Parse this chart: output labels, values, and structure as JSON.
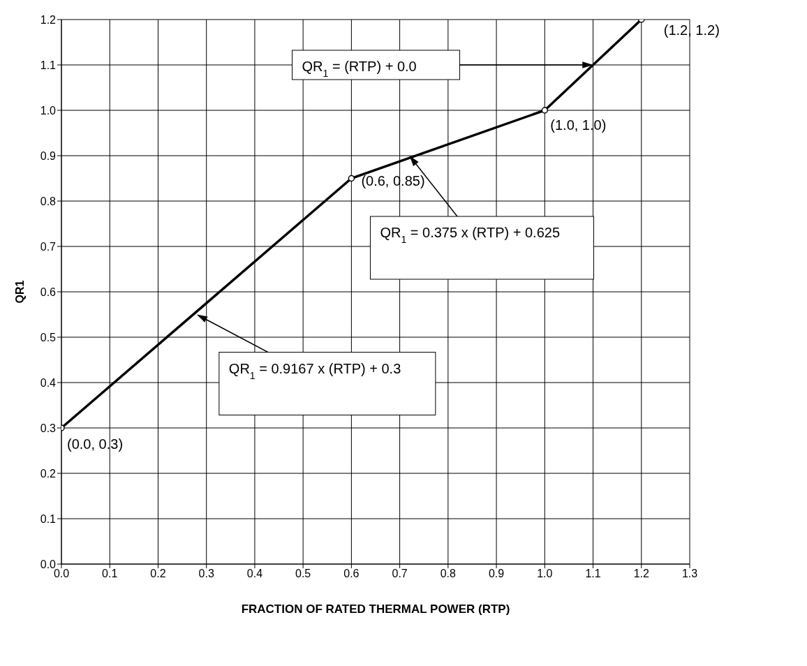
{
  "chart_data": {
    "type": "line",
    "xlabel": "FRACTION OF RATED THERMAL POWER (RTP)",
    "ylabel": "QR1",
    "x": [
      0,
      0.6,
      1.0,
      1.2
    ],
    "series": [
      {
        "color": "#000000",
        "values": [
          0.3,
          0.85,
          1.0,
          1.2
        ]
      }
    ],
    "xlim": [
      0,
      1.3
    ],
    "xticks": [
      {
        "value": 0,
        "label": "0.0"
      },
      0.1,
      0.2,
      0.3,
      0.4,
      0.5,
      0.6,
      0.7,
      0.8,
      0.9,
      {
        "value": 1,
        "label": "1.0"
      },
      1.1,
      1.2,
      1.3
    ],
    "ylim": [
      0,
      1.2
    ],
    "yticks": [
      {
        "value": 0,
        "label": "0.0"
      },
      0.1,
      0.2,
      0.3,
      0.4,
      0.5,
      0.6,
      0.7,
      0.8,
      0.9,
      {
        "value": 1,
        "label": "1.0"
      },
      1.1,
      1.2
    ],
    "grid": true,
    "marker": "circle",
    "line_style": "solid",
    "annotations": [
      {
        "text": "(0.0, 0.3)",
        "x": 0,
        "y": 0.3
      },
      {
        "text": "(0.6, 0.85)",
        "x": 0.6,
        "y": 0.85
      },
      {
        "text": "(1.0, 1.0)",
        "x": 1.0,
        "y": 1.0
      },
      {
        "text": "(1.2, 1.2)",
        "x": 1.2,
        "y": 1.2
      },
      {
        "text": "QR$_{1}$ = (RTP) + 0.0",
        "x": 1.1,
        "y": 1.1
      },
      {
        "text": "QR$_{1}$ = 0.375 x (RTP) + 0.625",
        "x": 0.72,
        "y": 0.9
      },
      {
        "text": "QR$_{1}$ = 0.9167 x (RTP) + 0.3",
        "x": 0.28,
        "y": 0.55
      }
    ]
  }
}
